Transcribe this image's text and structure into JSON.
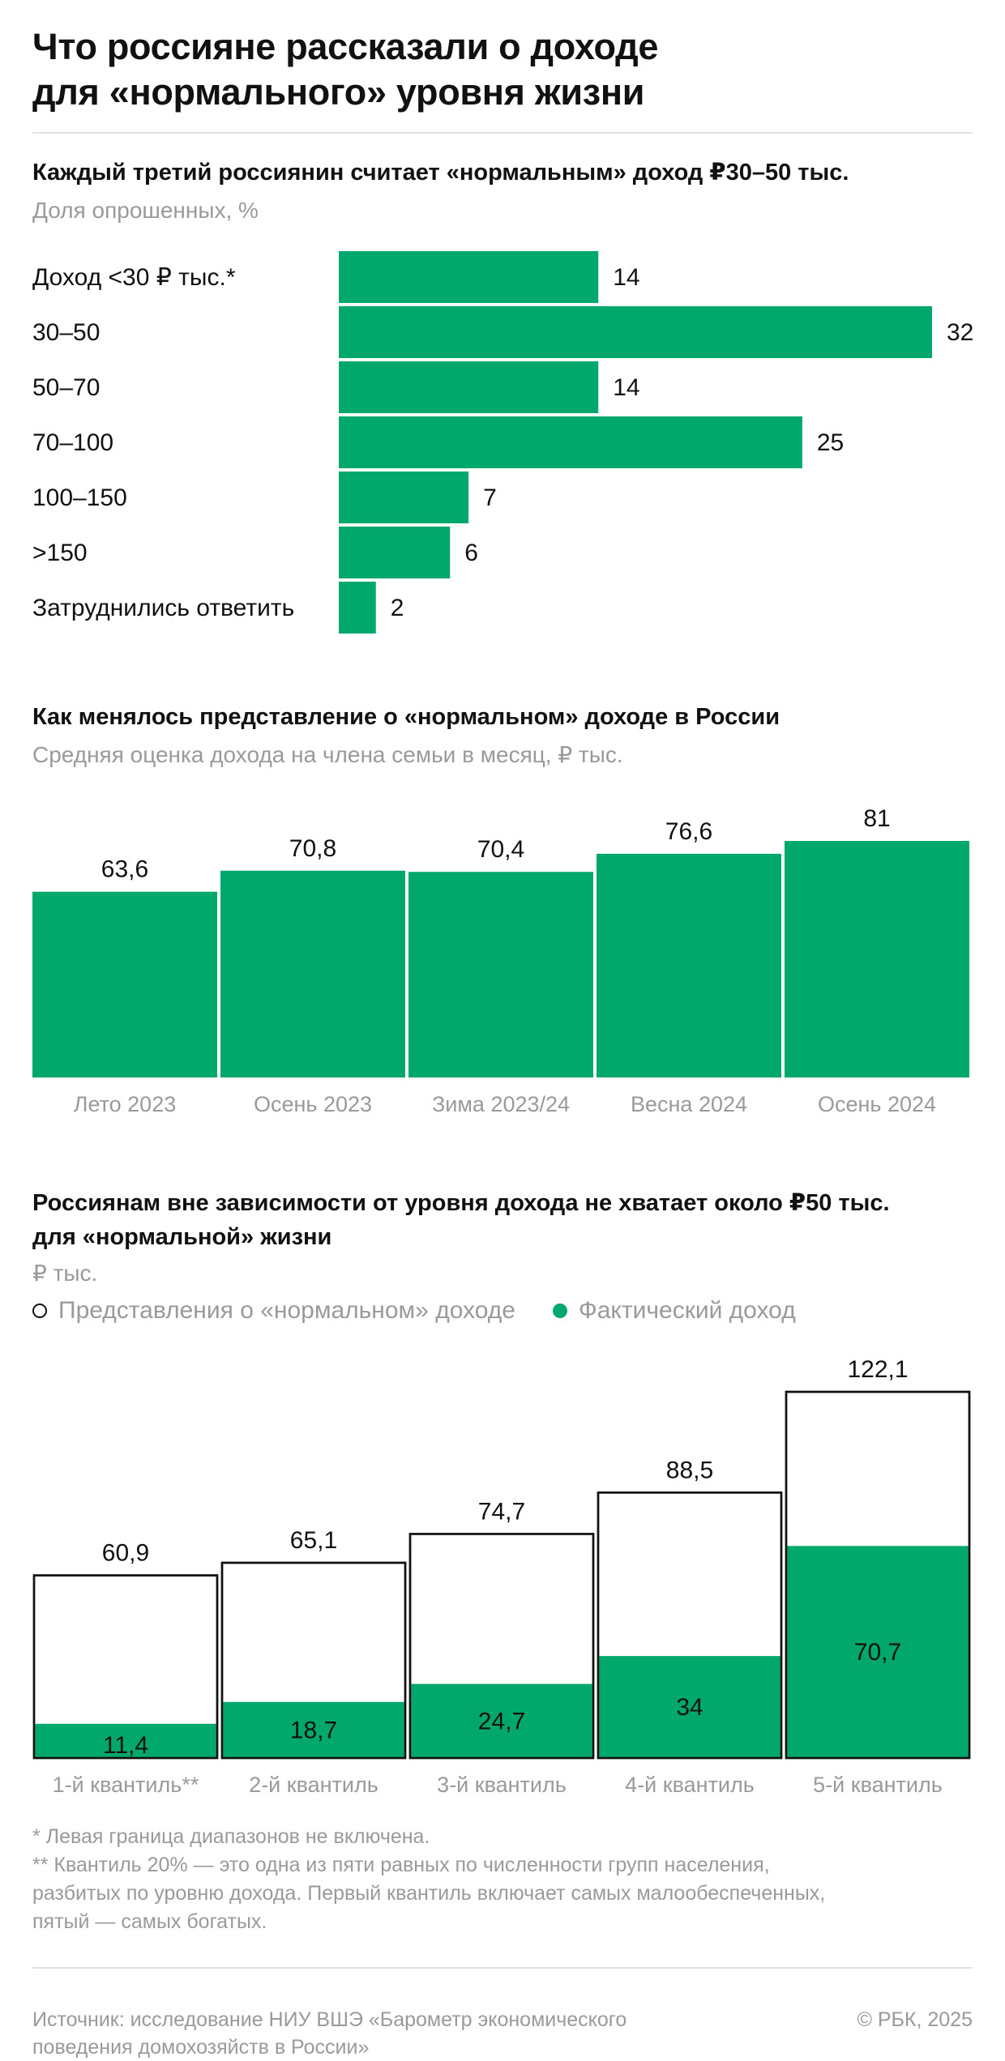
{
  "title_line1": "Что россияне рассказали о доходе",
  "title_line2": "для «нормального» уровня жизни",
  "accent_color": "#00a86b",
  "chart_data": [
    {
      "type": "bar",
      "orientation": "horizontal",
      "title": "Каждый третий россиянин считает «нормальным» доход ₽30–50 тыс.",
      "subtitle": "Доля опрошенных, %",
      "categories": [
        "Доход <30 ₽ тыс.*",
        "30–50",
        "50–70",
        "70–100",
        "100–150",
        ">150",
        "Затруднились ответить"
      ],
      "values": [
        14,
        32,
        14,
        25,
        7,
        6,
        2
      ],
      "value_labels": [
        "14",
        "32",
        "14",
        "25",
        "7",
        "6",
        "2"
      ],
      "xlim": [
        0,
        32
      ]
    },
    {
      "type": "bar",
      "title": "Как менялось представление о «нормальном» доходе в России",
      "subtitle": "Средняя оценка дохода на члена семьи в месяц, ₽ тыс.",
      "categories": [
        "Лето 2023",
        "Осень 2023",
        "Зима 2023/24",
        "Весна 2024",
        "Осень 2024"
      ],
      "values": [
        63.6,
        70.8,
        70.4,
        76.6,
        81
      ],
      "value_labels": [
        "63,6",
        "70,8",
        "70,4",
        "76,6",
        "81"
      ],
      "ylim": [
        0,
        81
      ]
    },
    {
      "type": "bar",
      "title_line1": "Россиянам вне зависимости от уровня дохода не хватает около ₽50 тыс.",
      "title_line2": "для «нормальной» жизни",
      "subtitle": "₽ тыс.",
      "categories": [
        "1-й квантиль**",
        "2-й квантиль",
        "3-й квантиль",
        "4-й квантиль",
        "5-й квантиль"
      ],
      "series": [
        {
          "name": "Представления о «нормальном» доходе",
          "values": [
            60.9,
            65.1,
            74.7,
            88.5,
            122.1
          ],
          "labels": [
            "60,9",
            "65,1",
            "74,7",
            "88,5",
            "122,1"
          ]
        },
        {
          "name": "Фактический доход",
          "values": [
            11.4,
            18.7,
            24.7,
            34,
            70.7
          ],
          "labels": [
            "11,4",
            "18,7",
            "24,7",
            "34",
            "70,7"
          ]
        }
      ],
      "ylim": [
        0,
        122.1
      ]
    }
  ],
  "notes": {
    "line1": "* Левая граница диапазонов не включена.",
    "line2": "** Квантиль 20% — это одна из пяти равных по численности групп населения,",
    "line3": "разбитых по уровню дохода. Первый квантиль включает самых малообеспеченных,",
    "line4": "пятый — самых богатых."
  },
  "source": {
    "line1": "Источник: исследование НИУ ВШЭ «Барометр экономического",
    "line2": "поведения домохозяйств в России»"
  },
  "copyright": "© РБК, 2025"
}
